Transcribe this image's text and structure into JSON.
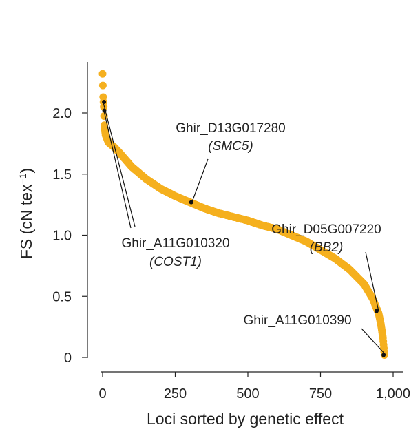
{
  "chart_data": {
    "type": "scatter",
    "title": "",
    "xlabel": "Loci sorted by genetic effect",
    "ylabel": {
      "main": "FS (cN tex",
      "exp": "−1",
      "close": ")"
    },
    "xlim": [
      -40,
      1000
    ],
    "ylim": [
      -0.05,
      2.4
    ],
    "x_ticks": [
      {
        "value": 0,
        "label": "0"
      },
      {
        "value": 250,
        "label": "250"
      },
      {
        "value": 500,
        "label": "500"
      },
      {
        "value": 750,
        "label": "750"
      },
      {
        "value": 1000,
        "label": "1,000"
      }
    ],
    "y_ticks": [
      {
        "value": 0,
        "label": "0"
      },
      {
        "value": 0.5,
        "label": "0.5"
      },
      {
        "value": 1.0,
        "label": "1.0"
      },
      {
        "value": 1.5,
        "label": "1.5"
      },
      {
        "value": 2.0,
        "label": "2.0"
      }
    ],
    "point_color": "#F5B01F",
    "marker_color": "#111111",
    "n_points": 970,
    "curve_profile": [
      [
        0,
        2.32
      ],
      [
        2,
        2.13
      ],
      [
        4,
        2.05
      ],
      [
        6,
        1.9
      ],
      [
        10,
        1.82
      ],
      [
        20,
        1.76
      ],
      [
        40,
        1.72
      ],
      [
        60,
        1.67
      ],
      [
        100,
        1.56
      ],
      [
        150,
        1.46
      ],
      [
        200,
        1.38
      ],
      [
        250,
        1.32
      ],
      [
        300,
        1.27
      ],
      [
        350,
        1.22
      ],
      [
        400,
        1.18
      ],
      [
        450,
        1.15
      ],
      [
        500,
        1.12
      ],
      [
        550,
        1.08
      ],
      [
        600,
        1.05
      ],
      [
        650,
        1.0
      ],
      [
        700,
        0.95
      ],
      [
        750,
        0.88
      ],
      [
        800,
        0.81
      ],
      [
        850,
        0.72
      ],
      [
        900,
        0.6
      ],
      [
        930,
        0.48
      ],
      [
        950,
        0.36
      ],
      [
        958,
        0.27
      ],
      [
        965,
        0.16
      ],
      [
        970,
        0.02
      ]
    ],
    "highlighted": [
      {
        "x": 5,
        "y": 2.09,
        "label": "Ghir_A11G010320",
        "gene": "COST1"
      },
      {
        "x": 6,
        "y": 2.02,
        "label": "Ghir_A11G010320",
        "gene": "COST1"
      },
      {
        "x": 305,
        "y": 1.27,
        "label": "Ghir_D13G017280",
        "gene": "SMC5"
      },
      {
        "x": 943,
        "y": 0.38,
        "label": "Ghir_D05G007220",
        "gene": "BB2"
      },
      {
        "x": 967,
        "y": 0.02,
        "label": "Ghir_A11G010390",
        "gene": ""
      }
    ],
    "annotations": [
      {
        "id": "smc5",
        "line1": "Ghir_D13G017280",
        "line2": "(SMC5)"
      },
      {
        "id": "cost1",
        "line1": "Ghir_A11G010320",
        "line2": "(COST1)"
      },
      {
        "id": "bb2",
        "line1": "Ghir_D05G007220",
        "line2": "(BB2)"
      },
      {
        "id": "a11g390",
        "line1": "Ghir_A11G010390",
        "line2": ""
      }
    ],
    "grid": false,
    "legend": "none"
  }
}
